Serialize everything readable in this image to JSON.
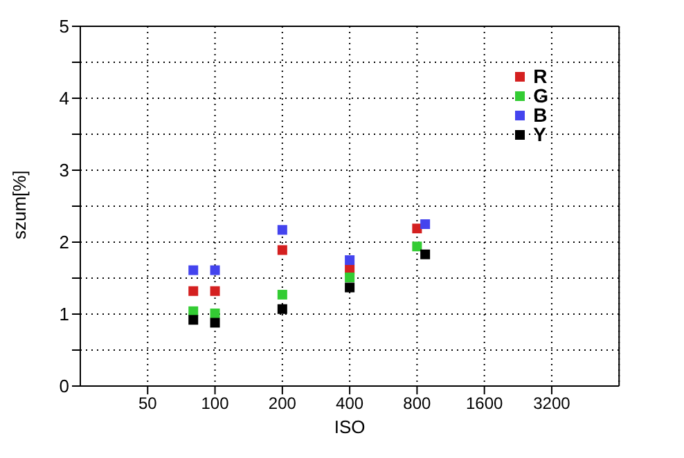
{
  "chart_data": {
    "type": "scatter",
    "xlabel": "ISO",
    "ylabel": "szum[%]",
    "log": "x",
    "xlim": [
      25,
      6400
    ],
    "xticks": [
      50,
      100,
      200,
      400,
      800,
      1600,
      3200
    ],
    "ylim": [
      0,
      5
    ],
    "yticks": [
      0,
      {
        "value": 0.5,
        "label": null
      },
      1,
      {
        "value": 1.5,
        "label": null
      },
      2,
      {
        "value": 2.5,
        "label": null
      },
      3,
      {
        "value": 3.5,
        "label": null
      },
      4,
      {
        "value": 4.5,
        "label": null
      },
      5
    ],
    "grid": true,
    "legend": "top right",
    "marker": "square",
    "series": [
      {
        "name": "R",
        "color": "#d42020",
        "x": [
          80,
          100,
          200,
          400,
          800
        ],
        "values": [
          1.32,
          1.32,
          1.89,
          1.62,
          2.19
        ]
      },
      {
        "name": "G",
        "color": "#33cc33",
        "x": [
          80,
          100,
          200,
          400,
          800
        ],
        "values": [
          1.04,
          1.01,
          1.27,
          1.51,
          1.94
        ]
      },
      {
        "name": "B",
        "color": "#4444ee",
        "x": [
          80,
          100,
          200,
          400,
          870
        ],
        "values": [
          1.61,
          1.61,
          2.17,
          1.75,
          2.25
        ]
      },
      {
        "name": "Y",
        "color": "#000000",
        "x": [
          80,
          100,
          200,
          400,
          870
        ],
        "values": [
          0.92,
          0.88,
          1.07,
          1.37,
          1.83
        ]
      }
    ]
  }
}
